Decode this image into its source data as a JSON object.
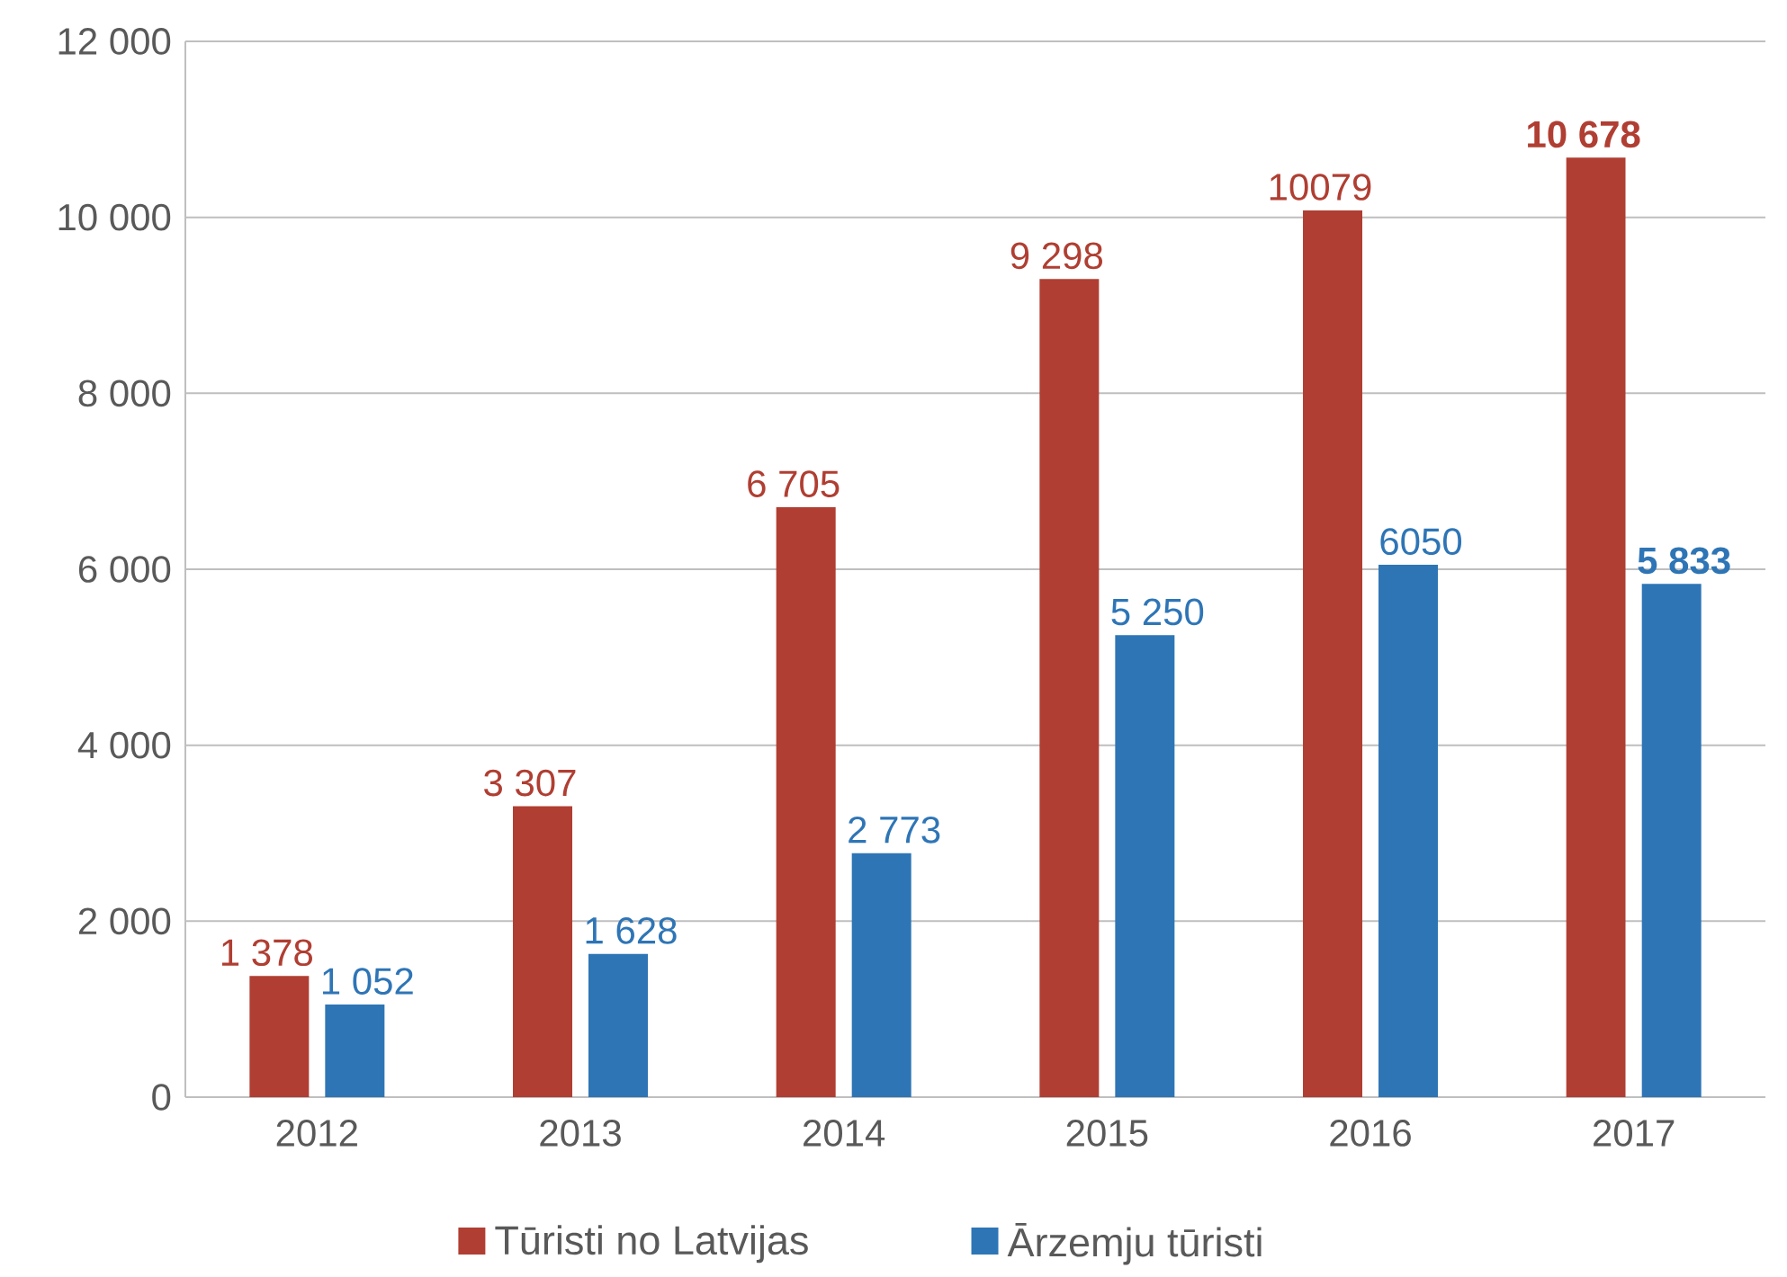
{
  "chart_data": {
    "type": "bar",
    "categories": [
      "2012",
      "2013",
      "2014",
      "2015",
      "2016",
      "2017"
    ],
    "series": [
      {
        "name": "Tūristi no Latvijas",
        "color": "#b03e32",
        "values": [
          1378,
          3307,
          6705,
          9298,
          10079,
          10678
        ],
        "value_labels": [
          "1 378",
          "3 307",
          "6 705",
          "9 298",
          "10079",
          "**10 678**"
        ]
      },
      {
        "name": "Ārzemju tūristi",
        "color": "#2e75b6",
        "values": [
          1052,
          1628,
          2773,
          5250,
          6050,
          5833
        ],
        "value_labels": [
          "1 052",
          "1 628",
          "2 773",
          "5 250",
          "6050",
          "**5 833**"
        ]
      }
    ],
    "ylim": [
      0,
      12000
    ],
    "yticks": [
      0,
      {
        "value": 2000,
        "label": "2 000"
      },
      {
        "value": 4000,
        "label": "4 000"
      },
      {
        "value": 6000,
        "label": "6 000"
      },
      {
        "value": 8000,
        "label": "8 000"
      },
      {
        "value": 10000,
        "label": "10 000"
      },
      {
        "value": 12000,
        "label": "12 000"
      }
    ],
    "grid": "y",
    "legend": "bottom"
  }
}
